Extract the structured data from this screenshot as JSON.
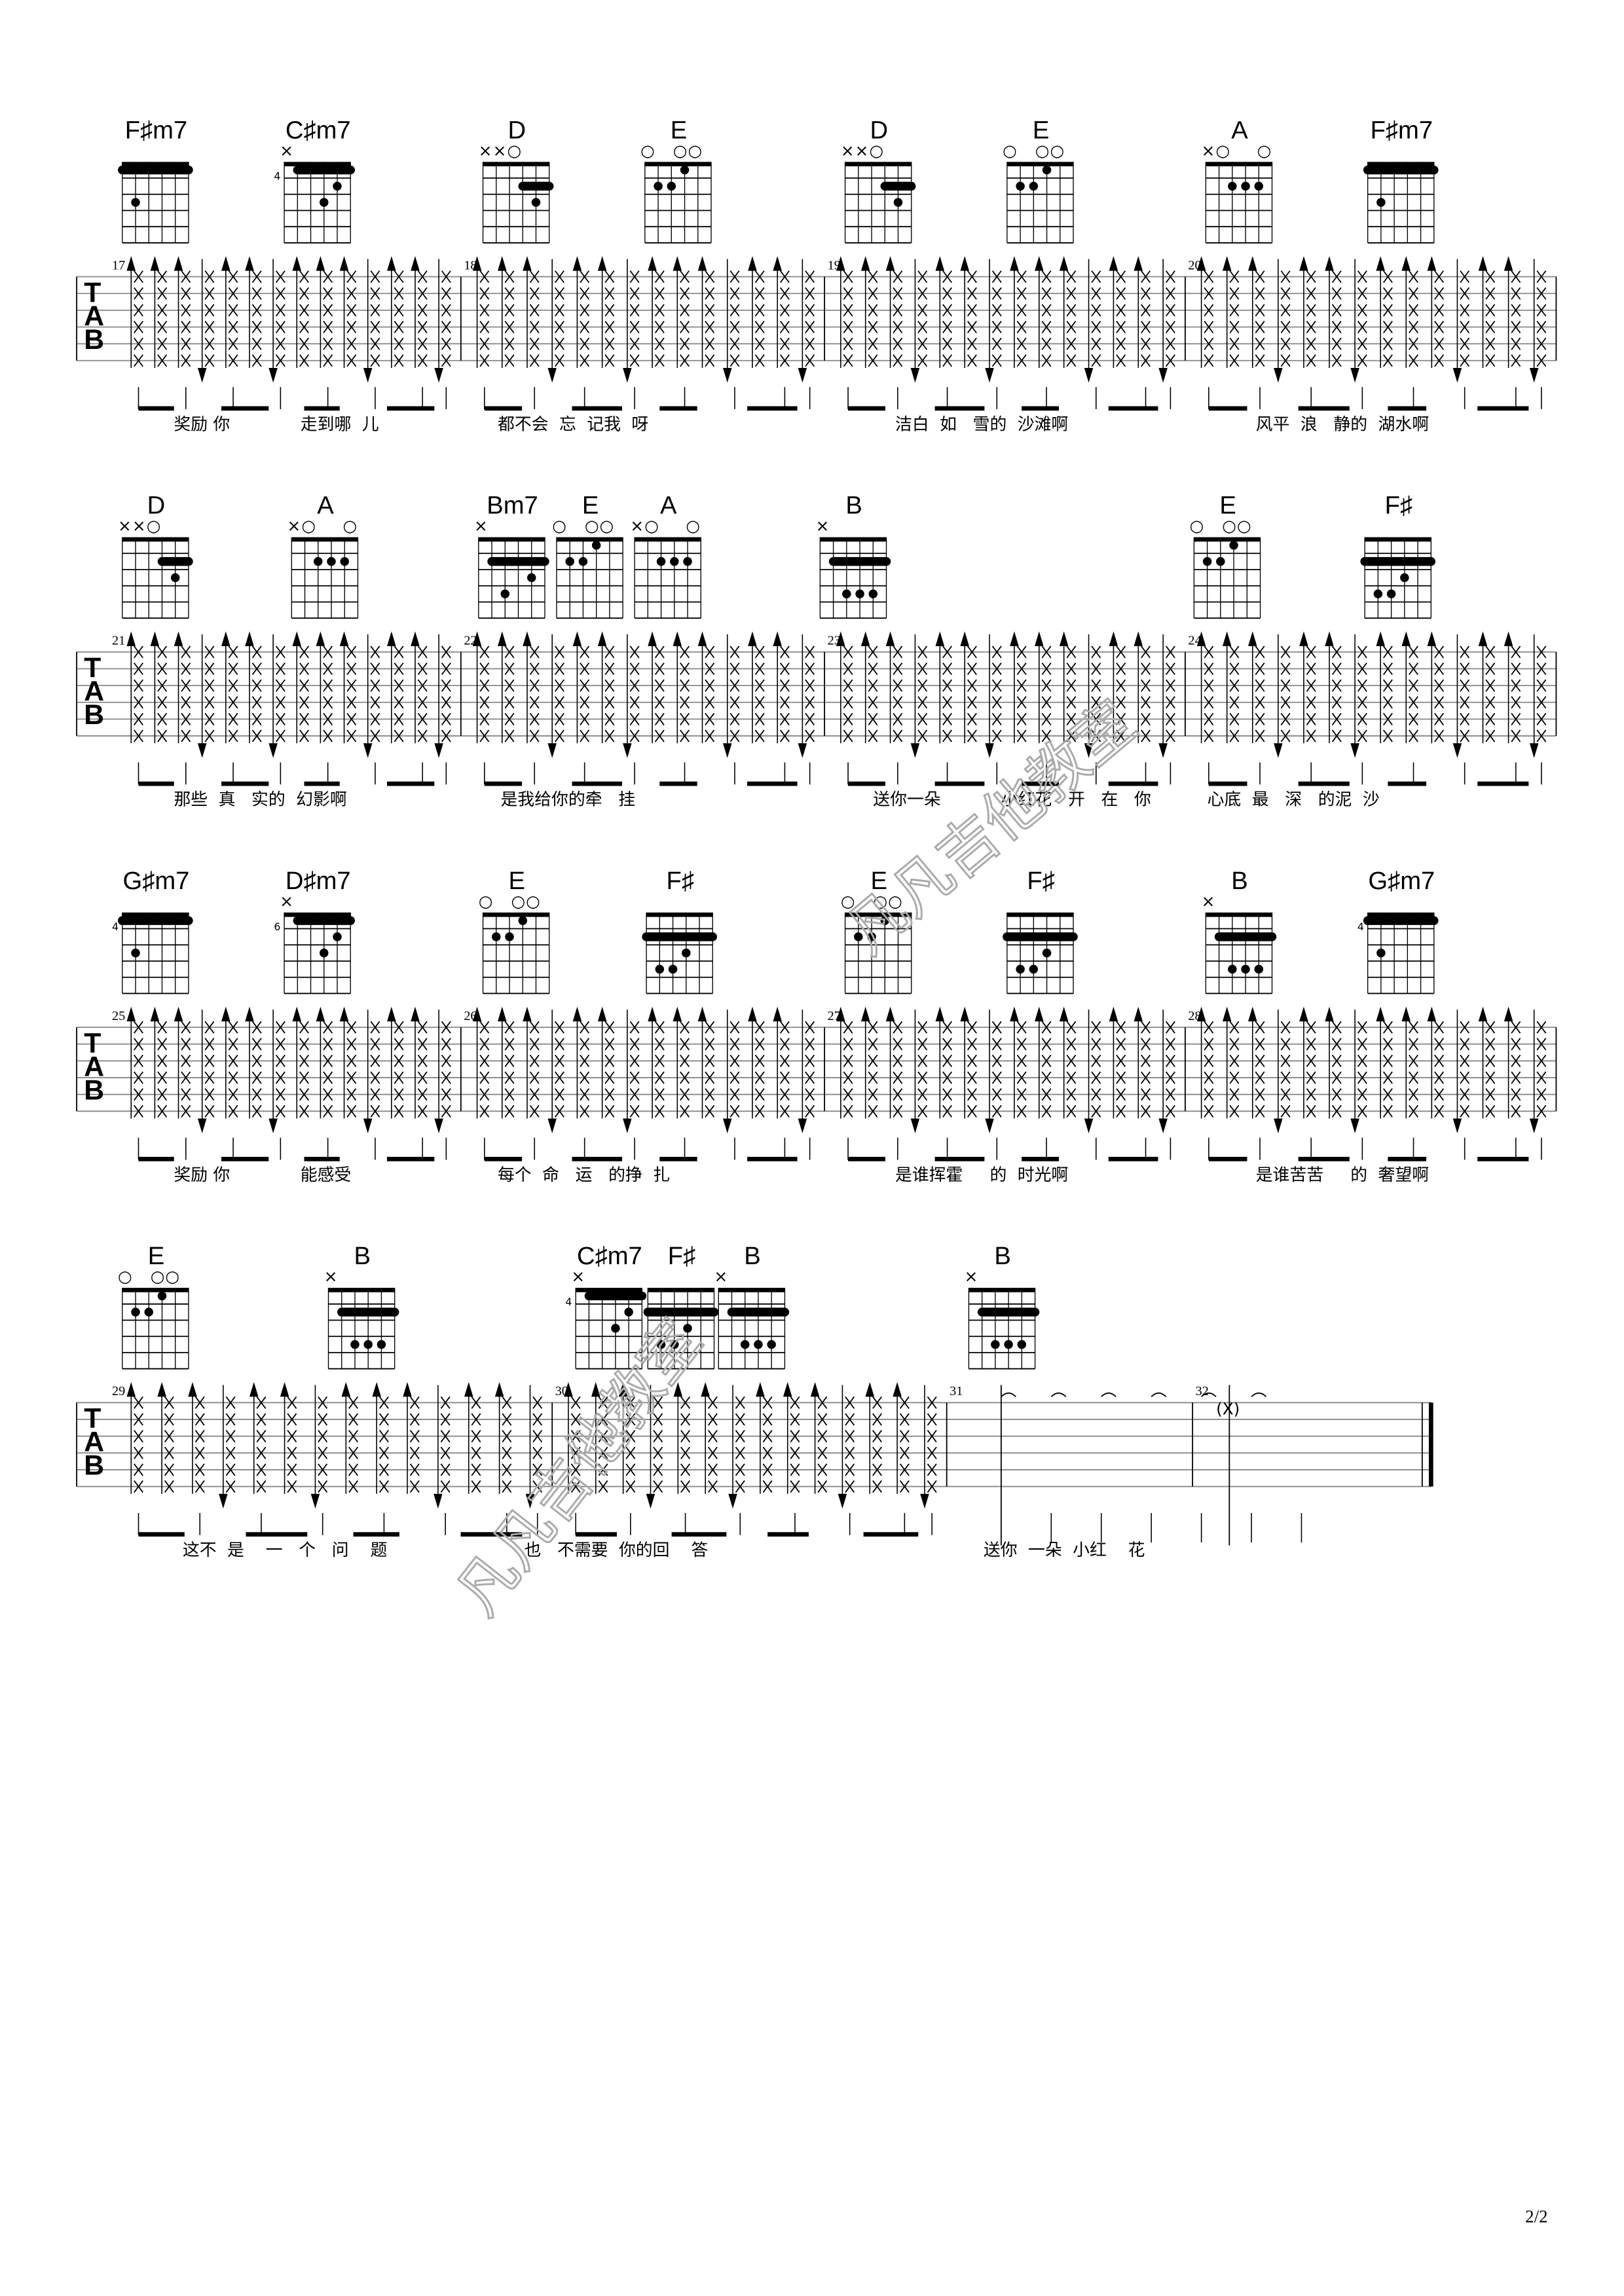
{
  "page_number": "2/2",
  "watermark": "凡凡吉他教室",
  "tab_label": [
    "T",
    "A",
    "B"
  ],
  "chord_shapes": {
    "F#m7": {
      "marks": "",
      "base": "",
      "barre": [
        1,
        1,
        6
      ],
      "dots": [
        [
          2,
          3
        ]
      ]
    },
    "C#m7": {
      "marks": "×",
      "base": "4",
      "barre": [
        1,
        2,
        6
      ],
      "dots": [
        [
          4,
          3
        ],
        [
          5,
          2
        ]
      ]
    },
    "D": {
      "marks": "××○",
      "base": "",
      "barre": [
        2,
        4,
        6
      ],
      "dots": [
        [
          5,
          3
        ]
      ]
    },
    "E": {
      "marks": "○  ○○",
      "base": "",
      "barre": null,
      "dots": [
        [
          2,
          2
        ],
        [
          3,
          2
        ],
        [
          4,
          1
        ]
      ]
    },
    "A": {
      "marks": "×○   ○",
      "base": "",
      "barre": null,
      "dots": [
        [
          3,
          2
        ],
        [
          4,
          2
        ],
        [
          5,
          2
        ]
      ]
    },
    "Bm7": {
      "marks": "×",
      "base": "",
      "barre": [
        2,
        2,
        6
      ],
      "dots": [
        [
          3,
          4
        ],
        [
          5,
          3
        ]
      ]
    },
    "B": {
      "marks": "×",
      "base": "",
      "barre": [
        2,
        2,
        6
      ],
      "dots": [
        [
          3,
          4
        ],
        [
          4,
          4
        ],
        [
          5,
          4
        ]
      ]
    },
    "F#": {
      "marks": "",
      "base": "",
      "barre": [
        2,
        1,
        6
      ],
      "dots": [
        [
          2,
          4
        ],
        [
          3,
          4
        ],
        [
          4,
          3
        ]
      ]
    },
    "G#m7": {
      "marks": "",
      "base": "4",
      "barre": [
        1,
        1,
        6
      ],
      "dots": [
        [
          2,
          3
        ]
      ]
    },
    "D#m7": {
      "marks": "×",
      "base": "6",
      "barre": [
        1,
        2,
        6
      ],
      "dots": [
        [
          4,
          3
        ],
        [
          5,
          2
        ]
      ]
    }
  },
  "systems": [
    {
      "measures": [
        "17",
        "18",
        "19",
        "20"
      ],
      "chords": [
        "F#m7",
        "C#m7",
        "D",
        "E",
        "D",
        "E",
        "A",
        "F#m7"
      ],
      "chord_labels": [
        "F♯m7",
        "C♯m7",
        "D",
        "E",
        "D",
        "E",
        "A",
        "F♯m7"
      ],
      "lyrics": [
        "奖励 你",
        "走到哪  儿",
        "都不会  忘  记我  呀",
        "洁白  如   雪的  沙滩啊",
        "风平  浪   静的  湖水啊"
      ]
    },
    {
      "measures": [
        "21",
        "22",
        "23",
        "24"
      ],
      "chords": [
        "D",
        "A",
        "Bm7",
        "E",
        "A",
        "B",
        "E",
        "F#"
      ],
      "chord_labels": [
        "D",
        "A",
        "Bm7",
        "E",
        "A",
        "B",
        "E",
        "F♯"
      ],
      "lyrics": [
        "那些  真   实的  幻影啊",
        "是我给你的牵   挂",
        "送你一朵",
        "小红花   开   在   你",
        "心底  最   深   的泥  沙"
      ]
    },
    {
      "measures": [
        "25",
        "26",
        "27",
        "28"
      ],
      "chords": [
        "G#m7",
        "D#m7",
        "E",
        "F#",
        "E",
        "F#",
        "B",
        "G#m7"
      ],
      "chord_labels": [
        "G♯m7",
        "D♯m7",
        "E",
        "F♯",
        "E",
        "F♯",
        "B",
        "G♯m7"
      ],
      "lyrics": [
        "奖励 你",
        "能感受",
        "每个  命   运   的挣  扎",
        "是谁挥霍     的  时光啊",
        "是谁苦苦     的  奢望啊"
      ]
    },
    {
      "measures": [
        "29",
        "30",
        "31",
        "32"
      ],
      "chords": [
        "E",
        "B",
        "C#m7",
        "F#",
        "B",
        "B"
      ],
      "chord_labels": [
        "E",
        "B",
        "C♯m7",
        "F♯",
        "B",
        "B"
      ],
      "lyrics": [
        "这不  是    一   个   问    题",
        "也   不需要  你的回    答",
        "送你  一朵  小红    花"
      ],
      "annotation": "(X)"
    }
  ]
}
